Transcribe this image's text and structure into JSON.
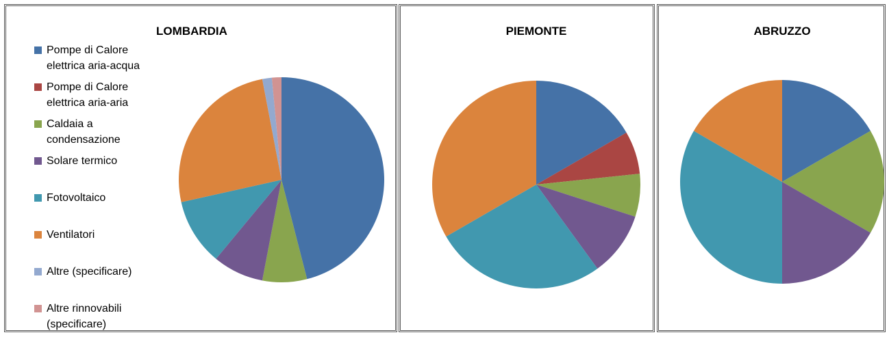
{
  "charts": [
    {
      "chart_data": {
        "type": "pie",
        "title": "LOMBARDIA",
        "categories": [
          "Pompe di Calore elettrica aria-acqua",
          "Pompe di Calore elettrica aria-aria",
          "Caldaia a condensazione",
          "Solare termico",
          "Fotovoltaico",
          "Ventilatori",
          "Altre  (specificare)",
          "Altre rinnovabili (specificare)"
        ],
        "colors": [
          "#4572a7",
          "#aa4643",
          "#89a54e",
          "#71588f",
          "#4198af",
          "#db843d",
          "#93a9cf",
          "#d19392"
        ],
        "values": [
          46,
          0,
          7,
          8,
          10.5,
          25.5,
          1.5,
          1.5
        ]
      }
    },
    {
      "chart_data": {
        "type": "pie",
        "title": "PIEMONTE",
        "values": [
          5,
          2,
          2,
          3,
          8,
          10,
          0,
          0
        ]
      }
    },
    {
      "chart_data": {
        "type": "pie",
        "title": "ABRUZZO",
        "values": [
          1,
          0,
          1,
          1,
          2,
          1,
          0,
          0
        ]
      }
    }
  ]
}
